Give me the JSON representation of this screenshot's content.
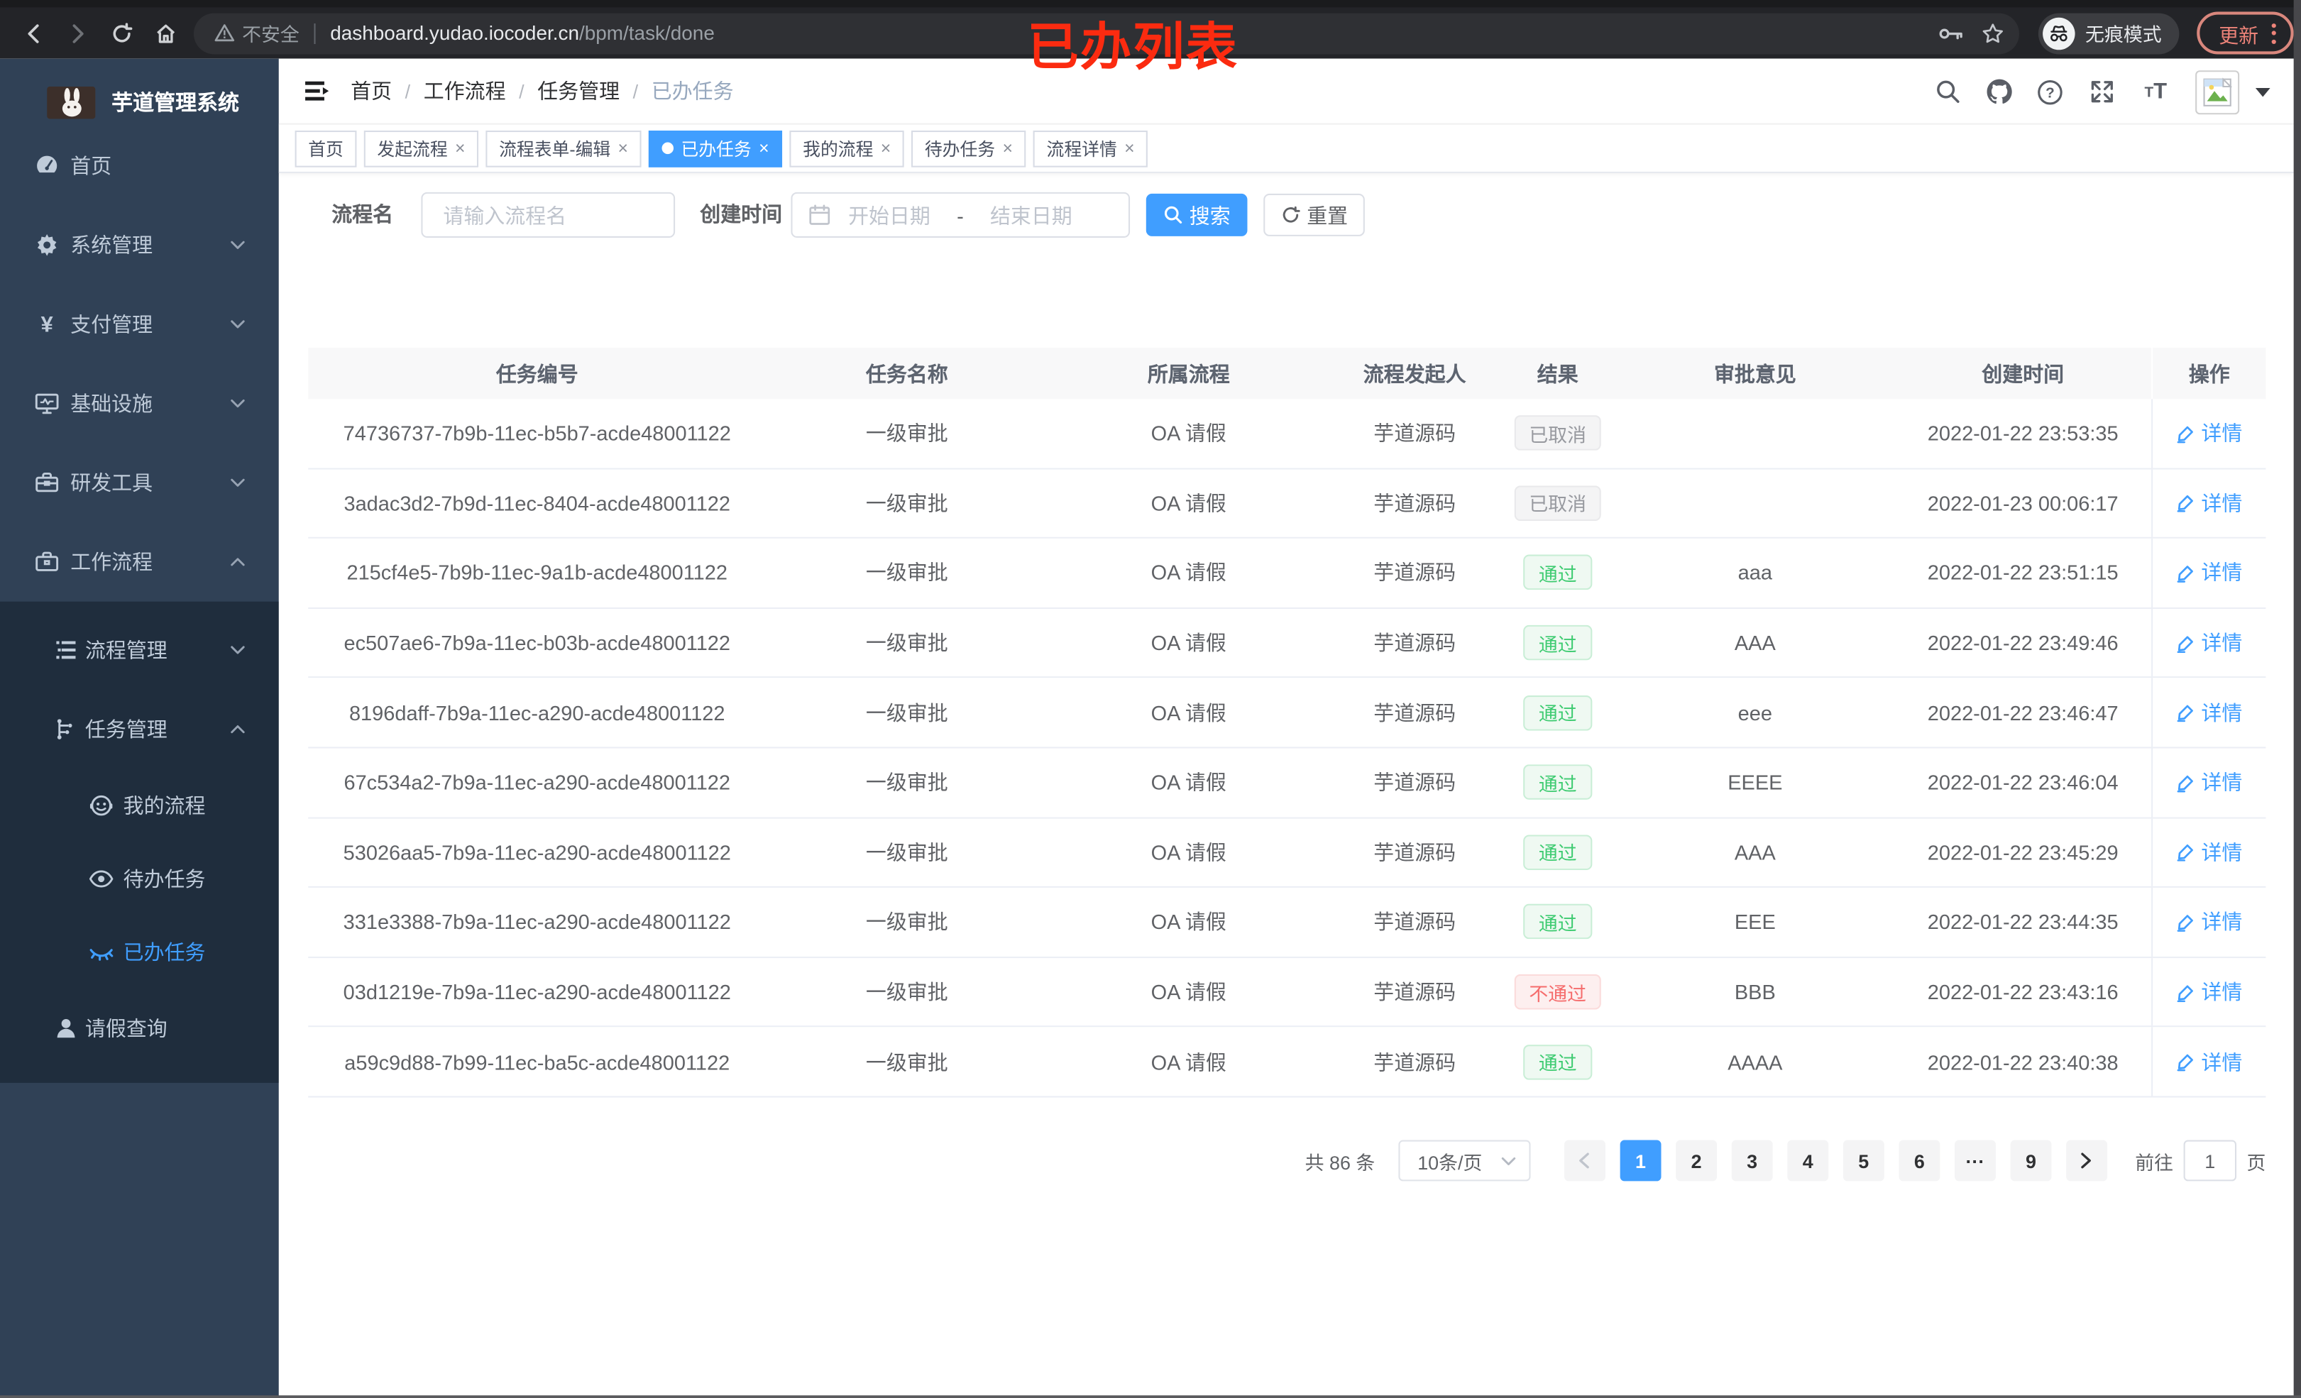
{
  "browser": {
    "security_label": "不安全",
    "url_host": "dashboard.yudao.iocoder.cn",
    "url_path": "/bpm/task/done",
    "incognito_label": "无痕模式",
    "update_label": "更新"
  },
  "annotation": {
    "text": "已办列表",
    "color": "#fb2b10"
  },
  "sidebar": {
    "title": "芋道管理系统",
    "items": [
      {
        "label": "首页",
        "icon": "dashboard-icon",
        "level": 1,
        "chevron": ""
      },
      {
        "label": "系统管理",
        "icon": "gear-icon",
        "level": 1,
        "chevron": "down"
      },
      {
        "label": "支付管理",
        "icon": "yen-icon",
        "level": 1,
        "chevron": "down"
      },
      {
        "label": "基础设施",
        "icon": "monitor-icon",
        "level": 1,
        "chevron": "down"
      },
      {
        "label": "研发工具",
        "icon": "toolbox-icon",
        "level": 1,
        "chevron": "down"
      },
      {
        "label": "工作流程",
        "icon": "briefcase-icon",
        "level": 1,
        "chevron": "up"
      }
    ],
    "submenu": [
      {
        "label": "流程管理",
        "icon": "list-tree-icon",
        "level": 2,
        "chevron": "down",
        "active": false
      },
      {
        "label": "任务管理",
        "icon": "flow-icon",
        "level": 2,
        "chevron": "up",
        "active": false
      },
      {
        "label": "我的流程",
        "icon": "face-icon",
        "level": 3,
        "chevron": "",
        "active": false
      },
      {
        "label": "待办任务",
        "icon": "eye-icon",
        "level": 3,
        "chevron": "",
        "active": false
      },
      {
        "label": "已办任务",
        "icon": "eye-closed-icon",
        "level": 3,
        "chevron": "",
        "active": true
      },
      {
        "label": "请假查询",
        "icon": "user-icon",
        "level": 2,
        "chevron": "",
        "active": false
      }
    ]
  },
  "header": {
    "breadcrumb": [
      "首页",
      "工作流程",
      "任务管理",
      "已办任务"
    ]
  },
  "tabs": [
    {
      "label": "首页",
      "closable": false,
      "active": false
    },
    {
      "label": "发起流程",
      "closable": true,
      "active": false
    },
    {
      "label": "流程表单-编辑",
      "closable": true,
      "active": false
    },
    {
      "label": "已办任务",
      "closable": true,
      "active": true
    },
    {
      "label": "我的流程",
      "closable": true,
      "active": false
    },
    {
      "label": "待办任务",
      "closable": true,
      "active": false
    },
    {
      "label": "流程详情",
      "closable": true,
      "active": false
    }
  ],
  "filters": {
    "name_label": "流程名",
    "name_placeholder": "请输入流程名",
    "time_label": "创建时间",
    "start_placeholder": "开始日期",
    "range_separator": "-",
    "end_placeholder": "结束日期",
    "search_label": "搜索",
    "reset_label": "重置"
  },
  "table": {
    "columns": [
      "任务编号",
      "任务名称",
      "所属流程",
      "流程发起人",
      "结果",
      "审批意见",
      "创建时间",
      "操作"
    ],
    "action_label": "详情",
    "rows": [
      {
        "id": "74736737-7b9b-11ec-b5b7-acde48001122",
        "name": "一级审批",
        "process": "OA 请假",
        "starter": "芋道源码",
        "result": {
          "label": "已取消",
          "type": "info"
        },
        "opinion": "",
        "created": "2022-01-22 23:53:35"
      },
      {
        "id": "3adac3d2-7b9d-11ec-8404-acde48001122",
        "name": "一级审批",
        "process": "OA 请假",
        "starter": "芋道源码",
        "result": {
          "label": "已取消",
          "type": "info"
        },
        "opinion": "",
        "created": "2022-01-23 00:06:17"
      },
      {
        "id": "215cf4e5-7b9b-11ec-9a1b-acde48001122",
        "name": "一级审批",
        "process": "OA 请假",
        "starter": "芋道源码",
        "result": {
          "label": "通过",
          "type": "success"
        },
        "opinion": "aaa",
        "created": "2022-01-22 23:51:15"
      },
      {
        "id": "ec507ae6-7b9a-11ec-b03b-acde48001122",
        "name": "一级审批",
        "process": "OA 请假",
        "starter": "芋道源码",
        "result": {
          "label": "通过",
          "type": "success"
        },
        "opinion": "AAA",
        "created": "2022-01-22 23:49:46"
      },
      {
        "id": "8196daff-7b9a-11ec-a290-acde48001122",
        "name": "一级审批",
        "process": "OA 请假",
        "starter": "芋道源码",
        "result": {
          "label": "通过",
          "type": "success"
        },
        "opinion": "eee",
        "created": "2022-01-22 23:46:47"
      },
      {
        "id": "67c534a2-7b9a-11ec-a290-acde48001122",
        "name": "一级审批",
        "process": "OA 请假",
        "starter": "芋道源码",
        "result": {
          "label": "通过",
          "type": "success"
        },
        "opinion": "EEEE",
        "created": "2022-01-22 23:46:04"
      },
      {
        "id": "53026aa5-7b9a-11ec-a290-acde48001122",
        "name": "一级审批",
        "process": "OA 请假",
        "starter": "芋道源码",
        "result": {
          "label": "通过",
          "type": "success"
        },
        "opinion": "AAA",
        "created": "2022-01-22 23:45:29"
      },
      {
        "id": "331e3388-7b9a-11ec-a290-acde48001122",
        "name": "一级审批",
        "process": "OA 请假",
        "starter": "芋道源码",
        "result": {
          "label": "通过",
          "type": "success"
        },
        "opinion": "EEE",
        "created": "2022-01-22 23:44:35"
      },
      {
        "id": "03d1219e-7b9a-11ec-a290-acde48001122",
        "name": "一级审批",
        "process": "OA 请假",
        "starter": "芋道源码",
        "result": {
          "label": "不通过",
          "type": "danger"
        },
        "opinion": "BBB",
        "created": "2022-01-22 23:43:16"
      },
      {
        "id": "a59c9d88-7b99-11ec-ba5c-acde48001122",
        "name": "一级审批",
        "process": "OA 请假",
        "starter": "芋道源码",
        "result": {
          "label": "通过",
          "type": "success"
        },
        "opinion": "AAAA",
        "created": "2022-01-22 23:40:38"
      }
    ]
  },
  "pagination": {
    "total_label": "共 86 条",
    "page_size": "10条/页",
    "pages": [
      "1",
      "2",
      "3",
      "4",
      "5",
      "6",
      "···",
      "9"
    ],
    "active_page": "1",
    "goto_label": "前往",
    "goto_value": "1",
    "goto_suffix": "页"
  },
  "colors": {
    "accent": "#409eff",
    "success_text": "#3ecb71",
    "danger_text": "#f56c6c",
    "info_text": "#909399",
    "sidebar_bg": "#304156",
    "submenu_bg": "#1f2d3d",
    "annotation": "#fb2b10",
    "update_button": "#ed8379"
  }
}
